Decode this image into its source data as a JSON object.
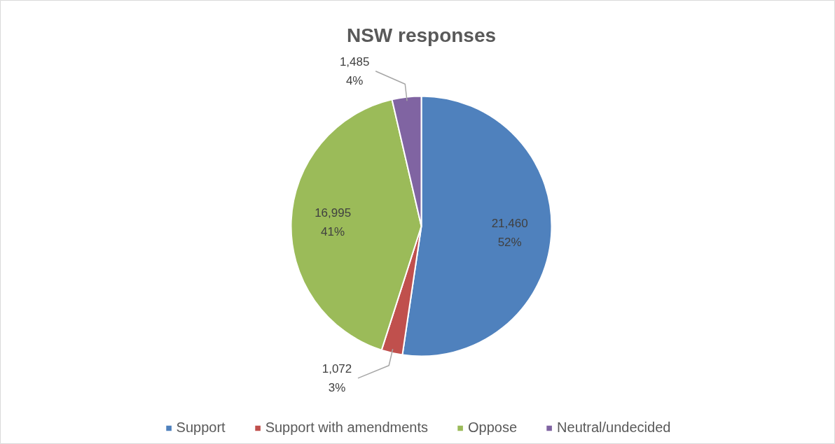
{
  "chart_data": {
    "type": "pie",
    "title": "NSW responses",
    "categories": [
      "Support",
      "Support with amendments",
      "Oppose",
      "Neutral/undecided"
    ],
    "values": [
      21460,
      1072,
      16995,
      1485
    ],
    "colors": [
      "#4f81bd",
      "#c0504d",
      "#9bbb59",
      "#8064a2"
    ],
    "value_labels": [
      "21,460\n52%",
      "1,072\n3%",
      "16,995\n41%",
      "1,485\n4%"
    ],
    "legend": "bottom"
  }
}
